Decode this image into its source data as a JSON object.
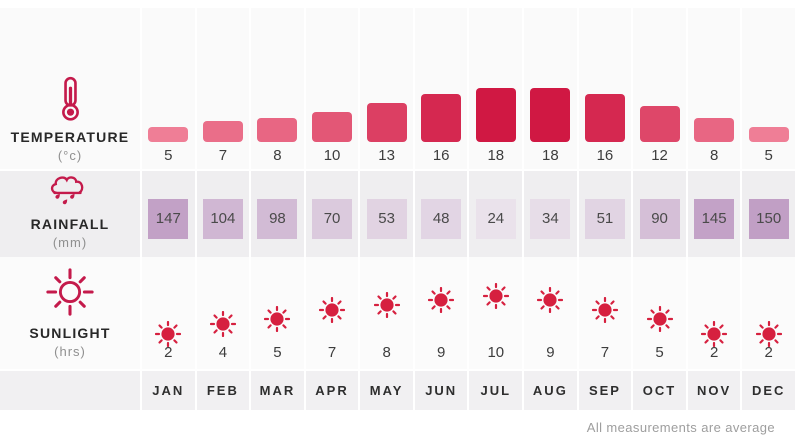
{
  "rows": {
    "temperature": {
      "label": "TEMPERATURE",
      "unit": "(°c)",
      "values": [
        5,
        7,
        8,
        10,
        13,
        16,
        18,
        18,
        16,
        12,
        8,
        5
      ],
      "bar_color_low": "#ef7e96",
      "bar_color_high": "#d01843"
    },
    "rainfall": {
      "label": "RAINFALL",
      "unit": "(mm)",
      "values": [
        147,
        104,
        98,
        70,
        53,
        48,
        24,
        34,
        51,
        90,
        145,
        150
      ],
      "box_color_low": "#eae2eb",
      "box_color_high": "#c19fc5"
    },
    "sunlight": {
      "label": "SUNLIGHT",
      "unit": "(hrs)",
      "values": [
        2,
        4,
        5,
        7,
        8,
        9,
        10,
        9,
        7,
        5,
        2,
        2
      ],
      "sun_color": "#d6203f"
    }
  },
  "months": [
    "JAN",
    "FEB",
    "MAR",
    "APR",
    "MAY",
    "JUN",
    "JUL",
    "AUG",
    "SEP",
    "OCT",
    "NOV",
    "DEC"
  ],
  "footer": {
    "note": "All measurements are average"
  },
  "colors": {
    "accent": "#c41a4b",
    "sun_red": "#d6203f"
  },
  "icons": {
    "temperature": "thermometer-icon",
    "rainfall": "rain-cloud-icon",
    "sunlight": "sun-icon"
  },
  "chart_data": {
    "type": "bar",
    "categories": [
      "JAN",
      "FEB",
      "MAR",
      "APR",
      "MAY",
      "JUN",
      "JUL",
      "AUG",
      "SEP",
      "OCT",
      "NOV",
      "DEC"
    ],
    "series": [
      {
        "name": "Temperature",
        "unit": "°c",
        "type": "bar",
        "values": [
          5,
          7,
          8,
          10,
          13,
          16,
          18,
          18,
          16,
          12,
          8,
          5
        ]
      },
      {
        "name": "Rainfall",
        "unit": "mm",
        "type": "heatmap",
        "values": [
          147,
          104,
          98,
          70,
          53,
          48,
          24,
          34,
          51,
          90,
          145,
          150
        ]
      },
      {
        "name": "Sunlight",
        "unit": "hrs",
        "type": "scatter",
        "values": [
          2,
          4,
          5,
          7,
          8,
          9,
          10,
          9,
          7,
          5,
          2,
          2
        ]
      }
    ],
    "title": "",
    "xlabel": "",
    "ylabel": "",
    "grid": false,
    "legend_position": "left",
    "annotations": [
      "All measurements are average"
    ]
  }
}
